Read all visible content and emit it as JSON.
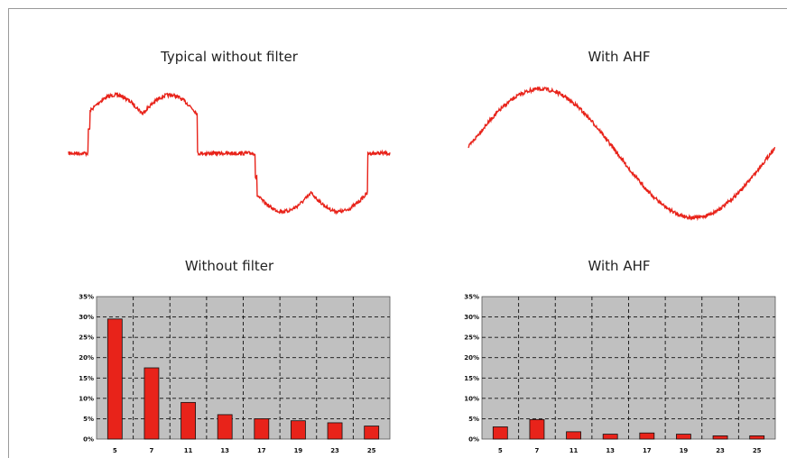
{
  "titles": {
    "wave_without": "Typical without filter",
    "wave_with": "With AHF",
    "bar_without": "Without filter",
    "bar_with": "With AHF"
  },
  "colors": {
    "trace": "#e8231a",
    "bar": "#e8231a",
    "plot_bg": "#c0c0c0"
  },
  "chart_data": [
    {
      "type": "line",
      "title": "Typical without filter",
      "description_shape": "distorted six-pulse current waveform",
      "x": [
        0,
        0.05,
        0.1,
        0.15,
        0.2,
        0.25,
        0.3,
        0.35,
        0.4,
        0.45,
        0.5,
        0.55,
        0.6,
        0.65,
        0.7,
        0.75,
        0.8,
        0.85,
        0.9,
        0.95,
        1.0
      ],
      "y": [
        0,
        0.15,
        0.62,
        0.85,
        0.62,
        0.85,
        0.62,
        0.0,
        0.0,
        0.0,
        0.0,
        -0.15,
        -0.62,
        -0.85,
        -0.62,
        -0.85,
        -0.62,
        0.0,
        0.0,
        0.0,
        0.0
      ]
    },
    {
      "type": "line",
      "title": "With AHF",
      "x": [
        0,
        0.1,
        0.2,
        0.3,
        0.4,
        0.5,
        0.6,
        0.7,
        0.8,
        0.9,
        1.0
      ],
      "y": [
        0.0,
        0.59,
        0.95,
        0.95,
        0.59,
        0.0,
        -0.59,
        -0.95,
        -0.95,
        -0.59,
        0.0
      ]
    },
    {
      "type": "bar",
      "title": "Without filter",
      "categories": [
        "5",
        "7",
        "11",
        "13",
        "17",
        "19",
        "23",
        "25"
      ],
      "values": [
        29.5,
        17.5,
        9,
        6,
        5,
        4.5,
        4,
        3.2
      ],
      "ylim": [
        0,
        35
      ],
      "yticks": [
        "0%",
        "5%",
        "10%",
        "15%",
        "20%",
        "25%",
        "30%",
        "35%"
      ],
      "grid": true
    },
    {
      "type": "bar",
      "title": "With AHF",
      "categories": [
        "5",
        "7",
        "11",
        "13",
        "17",
        "19",
        "23",
        "25"
      ],
      "values": [
        3,
        4.8,
        1.8,
        1.2,
        1.5,
        1.2,
        0.8,
        0.8
      ],
      "ylim": [
        0,
        35
      ],
      "yticks": [
        "0%",
        "5%",
        "10%",
        "15%",
        "20%",
        "25%",
        "30%",
        "35%"
      ],
      "grid": true
    }
  ]
}
